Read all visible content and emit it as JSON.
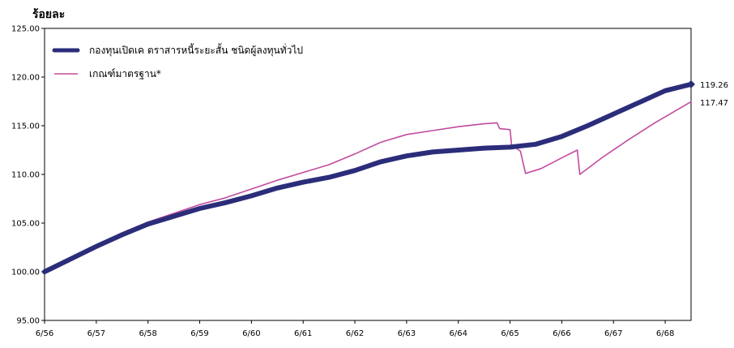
{
  "chart_data": {
    "type": "line",
    "ylabel": "ร้อยละ",
    "ylim": [
      95,
      125
    ],
    "yticks": [
      "95.00",
      "100.00",
      "105.00",
      "110.00",
      "115.00",
      "120.00",
      "125.00"
    ],
    "xlim": [
      0,
      12.5
    ],
    "xticks": [
      {
        "x": 0,
        "label": "6/56"
      },
      {
        "x": 1,
        "label": "6/57"
      },
      {
        "x": 2,
        "label": "6/58"
      },
      {
        "x": 3,
        "label": "6/59"
      },
      {
        "x": 4,
        "label": "6/60"
      },
      {
        "x": 5,
        "label": "6/61"
      },
      {
        "x": 6,
        "label": "6/62"
      },
      {
        "x": 7,
        "label": "6/63"
      },
      {
        "x": 8,
        "label": "6/64"
      },
      {
        "x": 9,
        "label": "6/65"
      },
      {
        "x": 10,
        "label": "6/66"
      },
      {
        "x": 11,
        "label": "6/67"
      },
      {
        "x": 12,
        "label": "6/68"
      }
    ],
    "grid": false,
    "legend_position": "top-left",
    "series": [
      {
        "name": "กองทุนเปิดเค ตราสารหนี้ระยะสั้น ชนิดผู้ลงทุนทั่วไป",
        "color": "#2b2d7a",
        "style": "thick-marker",
        "end_label": "119.26",
        "points": [
          [
            0,
            100.0
          ],
          [
            0.5,
            101.3
          ],
          [
            1,
            102.6
          ],
          [
            1.5,
            103.8
          ],
          [
            2,
            104.9
          ],
          [
            2.5,
            105.7
          ],
          [
            3,
            106.5
          ],
          [
            3.5,
            107.1
          ],
          [
            4,
            107.8
          ],
          [
            4.5,
            108.6
          ],
          [
            5,
            109.2
          ],
          [
            5.5,
            109.7
          ],
          [
            6,
            110.4
          ],
          [
            6.5,
            111.3
          ],
          [
            7,
            111.9
          ],
          [
            7.5,
            112.3
          ],
          [
            8,
            112.5
          ],
          [
            8.5,
            112.7
          ],
          [
            9,
            112.8
          ],
          [
            9.5,
            113.1
          ],
          [
            10,
            113.9
          ],
          [
            10.5,
            115.0
          ],
          [
            11,
            116.2
          ],
          [
            11.5,
            117.4
          ],
          [
            12,
            118.6
          ],
          [
            12.5,
            119.26
          ]
        ]
      },
      {
        "name": "เกณฑ์มาตรฐาน*",
        "color": "#c24b9e",
        "style": "thin",
        "end_label": "117.47",
        "points": [
          [
            0,
            100.0
          ],
          [
            0.5,
            101.3
          ],
          [
            1,
            102.7
          ],
          [
            1.5,
            104.0
          ],
          [
            2,
            105.1
          ],
          [
            2.5,
            106.0
          ],
          [
            3,
            106.9
          ],
          [
            3.5,
            107.6
          ],
          [
            4,
            108.5
          ],
          [
            4.5,
            109.4
          ],
          [
            5,
            110.2
          ],
          [
            5.5,
            111.0
          ],
          [
            6,
            112.1
          ],
          [
            6.5,
            113.3
          ],
          [
            7,
            114.1
          ],
          [
            7.5,
            114.5
          ],
          [
            8,
            114.9
          ],
          [
            8.5,
            115.2
          ],
          [
            8.75,
            115.3
          ],
          [
            8.8,
            114.7
          ],
          [
            9.0,
            114.6
          ],
          [
            9.03,
            113.0
          ],
          [
            9.2,
            112.4
          ],
          [
            9.3,
            110.1
          ],
          [
            9.6,
            110.6
          ],
          [
            10.0,
            111.7
          ],
          [
            10.3,
            112.5
          ],
          [
            10.35,
            110.0
          ],
          [
            10.8,
            111.8
          ],
          [
            11.3,
            113.6
          ],
          [
            11.8,
            115.3
          ],
          [
            12.5,
            117.47
          ]
        ]
      }
    ]
  }
}
